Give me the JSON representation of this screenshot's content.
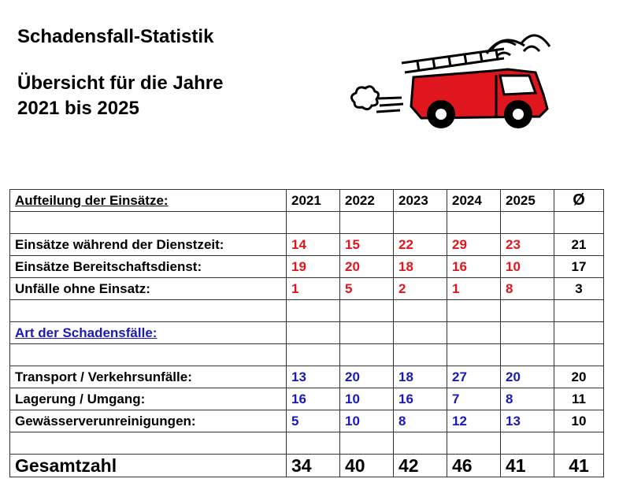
{
  "title": "Schadensfall-Statistik",
  "subtitle_line1": "Übersicht für die Jahre",
  "subtitle_line2": "2021 bis 2025",
  "colors": {
    "section1_values": "#e0161e",
    "section2_values": "#1a1ab8",
    "truck": "#e0161e"
  },
  "table": {
    "header": {
      "label": "Aufteilung der Einsätze:",
      "years": [
        "2021",
        "2022",
        "2023",
        "2024",
        "2025"
      ],
      "avg": "Ø"
    },
    "section1": [
      {
        "label": "Einsätze während der Dienstzeit:",
        "values": [
          "14",
          "15",
          "22",
          "29",
          "23"
        ],
        "avg": "21"
      },
      {
        "label": "Einsätze Bereitschaftsdienst:",
        "values": [
          "19",
          "20",
          "18",
          "16",
          "10"
        ],
        "avg": "17"
      },
      {
        "label": "Unfälle ohne Einsatz:",
        "values": [
          "1",
          "5",
          "2",
          "1",
          "8"
        ],
        "avg": "3"
      }
    ],
    "section2_title": "Art der Schadensfälle:",
    "section2": [
      {
        "label": "Transport / Verkehrsunfälle:",
        "values": [
          "13",
          "20",
          "18",
          "27",
          "20"
        ],
        "avg": "20"
      },
      {
        "label": "Lagerung / Umgang:",
        "values": [
          "16",
          "10",
          "16",
          "7",
          "8"
        ],
        "avg": "11"
      },
      {
        "label": "Gewässerverunreinigungen:",
        "values": [
          "5",
          "10",
          "8",
          "12",
          "13"
        ],
        "avg": "10"
      }
    ],
    "total": {
      "label": "Gesamtzahl",
      "values": [
        "34",
        "40",
        "42",
        "46",
        "41"
      ],
      "avg": "41"
    }
  }
}
